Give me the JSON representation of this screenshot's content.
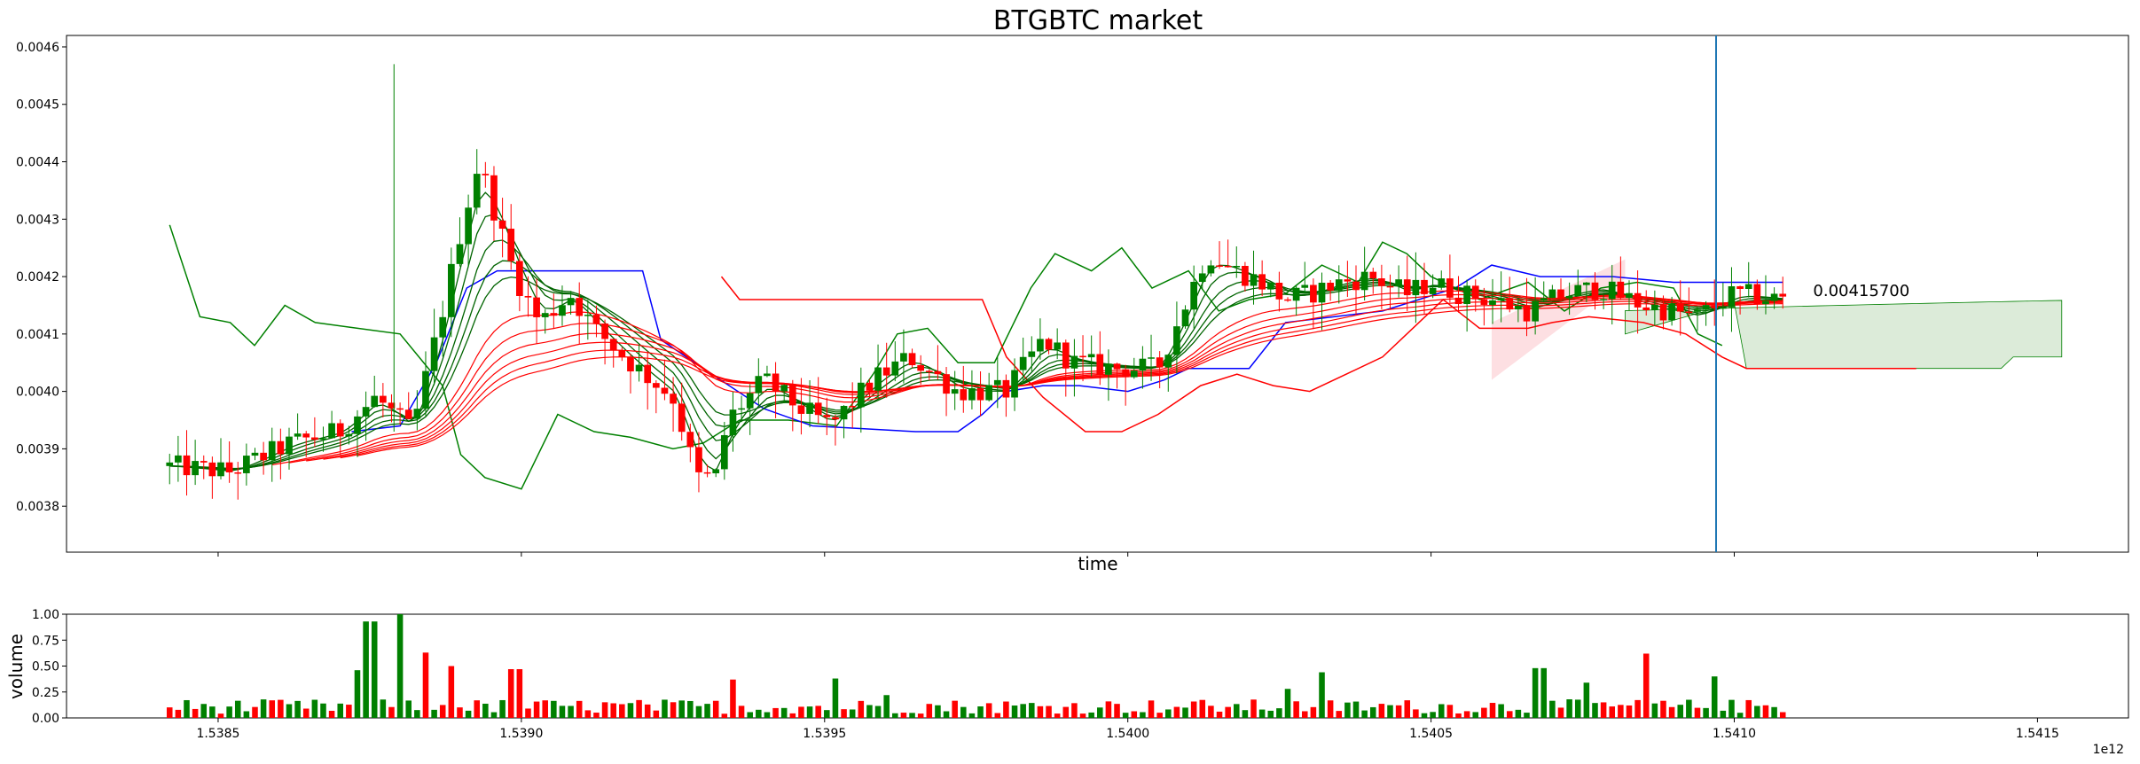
{
  "chart_data": [
    {
      "type": "candlestick",
      "title": "BTGBTC market",
      "xlabel": "time",
      "ylabel": "",
      "x_offset_label": "1e12",
      "xlim": [
        1.53825,
        1.54165
      ],
      "ylim": [
        0.00372,
        0.00462
      ],
      "yticks": [
        0.0038,
        0.0039,
        0.004,
        0.0041,
        0.0042,
        0.0043,
        0.0044,
        0.0045,
        0.0046
      ],
      "ytick_labels": [
        "0.0038",
        "0.0039",
        "0.0040",
        "0.0041",
        "0.0042",
        "0.0043",
        "0.0044",
        "0.0045",
        "0.0046"
      ],
      "xticks": [
        1.5385,
        1.539,
        1.5395,
        1.54,
        1.5405,
        1.541,
        1.5415
      ],
      "xtick_labels": [
        "1.5385",
        "1.5390",
        "1.5395",
        "1.5400",
        "1.5405",
        "1.5410",
        "1.5415"
      ],
      "up_color": "#008000",
      "down_color": "#ff0000",
      "vline_x": 1.54097,
      "vline_color": "#1f77b4",
      "last_price_label": "0.00415700",
      "last_price": 0.004157,
      "candles_time_range": [
        1.53842,
        1.54108
      ],
      "candles_close_anchors": [
        [
          1.53842,
          0.00387
        ],
        [
          1.53852,
          0.00386
        ],
        [
          1.53862,
          0.00391
        ],
        [
          1.5387,
          0.00393
        ],
        [
          1.53876,
          0.00399
        ],
        [
          1.53882,
          0.00393
        ],
        [
          1.53887,
          0.00414
        ],
        [
          1.5389,
          0.00428
        ],
        [
          1.53893,
          0.0044
        ],
        [
          1.53896,
          0.0043
        ],
        [
          1.53899,
          0.0042
        ],
        [
          1.53903,
          0.00412
        ],
        [
          1.53908,
          0.00417
        ],
        [
          1.53912,
          0.00411
        ],
        [
          1.53918,
          0.00405
        ],
        [
          1.53925,
          0.00399
        ],
        [
          1.53929,
          0.00385
        ],
        [
          1.53932,
          0.00385
        ],
        [
          1.53934,
          0.00395
        ],
        [
          1.5394,
          0.00402
        ],
        [
          1.53946,
          0.00397
        ],
        [
          1.53951,
          0.00394
        ],
        [
          1.53958,
          0.00402
        ],
        [
          1.53964,
          0.00406
        ],
        [
          1.53972,
          0.004
        ],
        [
          1.5398,
          0.004
        ],
        [
          1.53986,
          0.00409
        ],
        [
          1.53991,
          0.00405
        ],
        [
          1.53998,
          0.00404
        ],
        [
          1.54005,
          0.00404
        ],
        [
          1.54009,
          0.00414
        ],
        [
          1.54013,
          0.00424
        ],
        [
          1.54018,
          0.00421
        ],
        [
          1.54022,
          0.00419
        ],
        [
          1.54026,
          0.00416
        ],
        [
          1.5403,
          0.00417
        ],
        [
          1.54035,
          0.00419
        ],
        [
          1.5404,
          0.0042
        ],
        [
          1.54046,
          0.00417
        ],
        [
          1.5405,
          0.00419
        ],
        [
          1.54055,
          0.00417
        ],
        [
          1.5406,
          0.00416
        ],
        [
          1.54066,
          0.00414
        ],
        [
          1.54072,
          0.00417
        ],
        [
          1.54078,
          0.00418
        ],
        [
          1.54085,
          0.00415
        ],
        [
          1.54094,
          0.00413
        ],
        [
          1.541,
          0.00417
        ],
        [
          1.54108,
          0.00416
        ]
      ],
      "overlay_lines": [
        {
          "color": "#008000",
          "points": [
            [
              1.53842,
              0.00429
            ],
            [
              1.53847,
              0.00413
            ],
            [
              1.53852,
              0.00412
            ],
            [
              1.53856,
              0.00408
            ],
            [
              1.53861,
              0.00415
            ],
            [
              1.53866,
              0.00412
            ],
            [
              1.53873,
              0.00411
            ],
            [
              1.5388,
              0.0041
            ],
            [
              1.53887,
              0.00401
            ],
            [
              1.5389,
              0.00389
            ],
            [
              1.53894,
              0.00385
            ],
            [
              1.539,
              0.00383
            ],
            [
              1.53906,
              0.00396
            ],
            [
              1.53912,
              0.00393
            ],
            [
              1.53918,
              0.00392
            ],
            [
              1.53925,
              0.0039
            ],
            [
              1.5393,
              0.00391
            ],
            [
              1.53936,
              0.00395
            ],
            [
              1.53944,
              0.00395
            ],
            [
              1.53952,
              0.00394
            ],
            [
              1.53958,
              0.00403
            ],
            [
              1.53962,
              0.0041
            ],
            [
              1.53967,
              0.00411
            ],
            [
              1.53972,
              0.00405
            ],
            [
              1.53978,
              0.00405
            ],
            [
              1.53984,
              0.00418
            ],
            [
              1.53988,
              0.00424
            ],
            [
              1.53994,
              0.00421
            ],
            [
              1.53999,
              0.00425
            ],
            [
              1.54004,
              0.00418
            ],
            [
              1.5401,
              0.00421
            ],
            [
              1.54015,
              0.00414
            ],
            [
              1.5402,
              0.00416
            ],
            [
              1.54026,
              0.00417
            ],
            [
              1.54032,
              0.00422
            ],
            [
              1.54038,
              0.00419
            ],
            [
              1.54042,
              0.00426
            ],
            [
              1.54046,
              0.00424
            ],
            [
              1.5405,
              0.0042
            ],
            [
              1.54058,
              0.00416
            ],
            [
              1.54066,
              0.00419
            ],
            [
              1.54072,
              0.00414
            ],
            [
              1.54078,
              0.00418
            ],
            [
              1.54084,
              0.00419
            ],
            [
              1.5409,
              0.00418
            ],
            [
              1.54094,
              0.0041
            ],
            [
              1.54098,
              0.00408
            ]
          ]
        },
        {
          "color": "#0000ff",
          "points": [
            [
              1.53872,
              0.00393
            ],
            [
              1.5388,
              0.00394
            ],
            [
              1.53886,
              0.00405
            ],
            [
              1.53891,
              0.00418
            ],
            [
              1.53896,
              0.00421
            ],
            [
              1.53903,
              0.00421
            ],
            [
              1.5392,
              0.00421
            ],
            [
              1.53923,
              0.00409
            ],
            [
              1.5393,
              0.00404
            ],
            [
              1.5394,
              0.00397
            ],
            [
              1.53948,
              0.00394
            ],
            [
              1.53965,
              0.00393
            ],
            [
              1.53972,
              0.00393
            ],
            [
              1.53976,
              0.00396
            ],
            [
              1.5398,
              0.004
            ],
            [
              1.53986,
              0.00401
            ],
            [
              1.53992,
              0.00401
            ],
            [
              1.54,
              0.004
            ],
            [
              1.54006,
              0.00402
            ],
            [
              1.5401,
              0.00404
            ],
            [
              1.5402,
              0.00404
            ],
            [
              1.54026,
              0.00412
            ],
            [
              1.54034,
              0.00413
            ],
            [
              1.54042,
              0.00414
            ],
            [
              1.54048,
              0.00416
            ],
            [
              1.54054,
              0.00418
            ],
            [
              1.5406,
              0.00422
            ],
            [
              1.54068,
              0.0042
            ],
            [
              1.5408,
              0.0042
            ],
            [
              1.5409,
              0.00419
            ],
            [
              1.54094,
              0.00419
            ],
            [
              1.54108,
              0.00419
            ]
          ]
        },
        {
          "color": "#ff0000",
          "points": [
            [
              1.53933,
              0.0042
            ],
            [
              1.53936,
              0.00416
            ],
            [
              1.5396,
              0.00416
            ],
            [
              1.53976,
              0.00416
            ],
            [
              1.5398,
              0.00406
            ],
            [
              1.53986,
              0.00399
            ],
            [
              1.53993,
              0.00393
            ],
            [
              1.53999,
              0.00393
            ],
            [
              1.54005,
              0.00396
            ],
            [
              1.54012,
              0.00401
            ],
            [
              1.54018,
              0.00403
            ],
            [
              1.54024,
              0.00401
            ],
            [
              1.5403,
              0.004
            ],
            [
              1.54036,
              0.00403
            ],
            [
              1.54042,
              0.00406
            ],
            [
              1.54048,
              0.00412
            ],
            [
              1.54052,
              0.00416
            ],
            [
              1.54058,
              0.00411
            ],
            [
              1.54066,
              0.00411
            ],
            [
              1.5407,
              0.00412
            ],
            [
              1.54076,
              0.00413
            ],
            [
              1.54085,
              0.00412
            ],
            [
              1.54092,
              0.0041
            ],
            [
              1.54098,
              0.00406
            ],
            [
              1.54102,
              0.00404
            ],
            [
              1.5412,
              0.00404
            ],
            [
              1.5413,
              0.00404
            ]
          ]
        }
      ],
      "cloud": {
        "upper_color": "#008000",
        "lower_color": "#ff0000",
        "fill_green": "#dcebd9",
        "fill_red": "#fddfe2"
      }
    },
    {
      "type": "bar",
      "title": "",
      "xlabel": "",
      "ylabel": "volume",
      "ylim": [
        0.0,
        1.0
      ],
      "yticks": [
        0.0,
        0.25,
        0.5,
        0.75,
        1.0
      ],
      "ytick_labels": [
        "0.00",
        "0.25",
        "0.50",
        "0.75",
        "1.00"
      ],
      "xlim": [
        1.53825,
        1.54165
      ],
      "xticks": [
        1.5385,
        1.539,
        1.5395,
        1.54,
        1.5405,
        1.541,
        1.5415
      ],
      "xtick_labels": [
        "1.5385",
        "1.5390",
        "1.5395",
        "1.5400",
        "1.5405",
        "1.5410",
        "1.5415"
      ],
      "x_offset_label": "1e12",
      "colors": [
        "#008000",
        "#ff0000"
      ],
      "highlights": [
        [
          1.53875,
          0.93,
          "#008000"
        ],
        [
          1.5388,
          1.0,
          "#008000"
        ],
        [
          1.53884,
          0.63,
          "#ff0000"
        ],
        [
          1.53873,
          0.46,
          "#008000"
        ],
        [
          1.53888,
          0.5,
          "#ff0000"
        ],
        [
          1.53899,
          0.47,
          "#ff0000"
        ],
        [
          1.53935,
          0.37,
          "#ff0000"
        ],
        [
          1.53952,
          0.38,
          "#008000"
        ],
        [
          1.5396,
          0.22,
          "#008000"
        ],
        [
          1.54032,
          0.44,
          "#008000"
        ],
        [
          1.54026,
          0.28,
          "#008000"
        ],
        [
          1.54068,
          0.48,
          "#008000"
        ],
        [
          1.54086,
          0.62,
          "#ff0000"
        ],
        [
          1.54076,
          0.34,
          "#008000"
        ],
        [
          1.54097,
          0.4,
          "#008000"
        ]
      ]
    }
  ]
}
